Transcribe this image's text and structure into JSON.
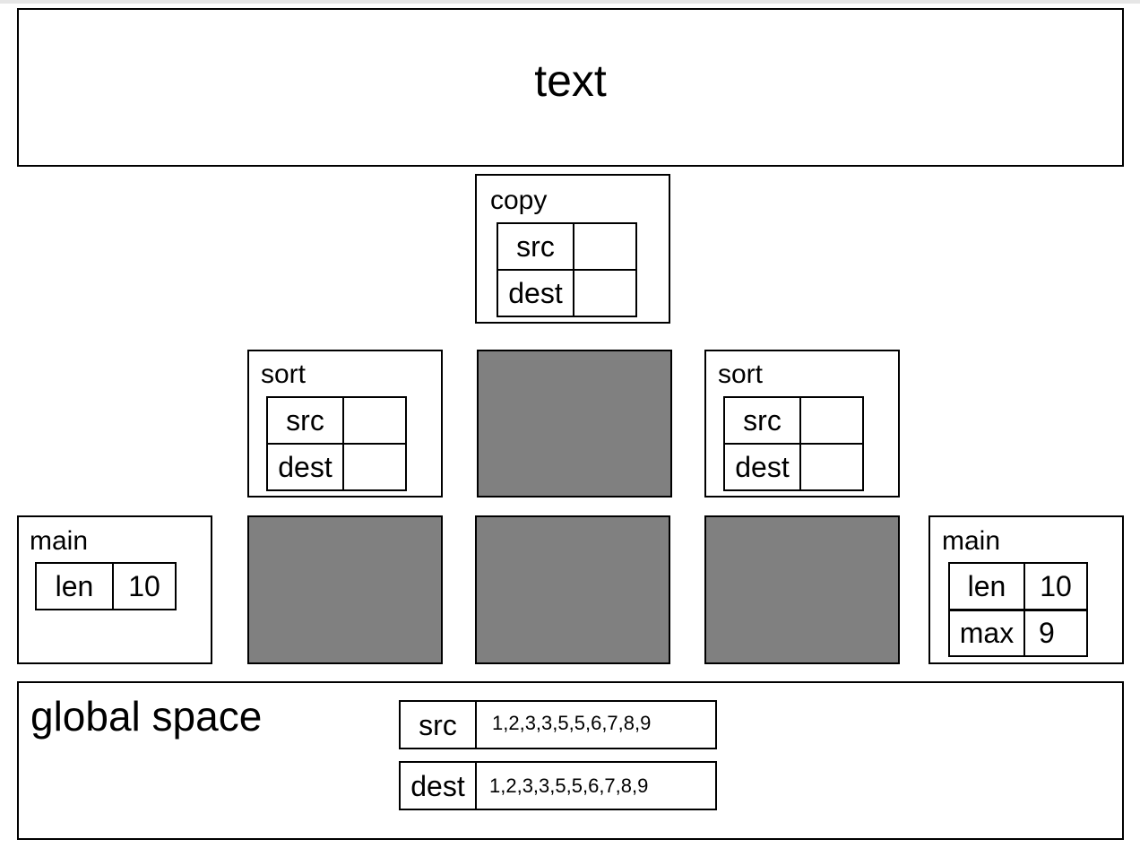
{
  "title": "text",
  "copy_frame": {
    "name": "copy",
    "rows": [
      {
        "var": "src",
        "value": ""
      },
      {
        "var": "dest",
        "value": ""
      }
    ]
  },
  "sort_frame_left": {
    "name": "sort",
    "rows": [
      {
        "var": "src",
        "value": ""
      },
      {
        "var": "dest",
        "value": ""
      }
    ]
  },
  "sort_frame_right": {
    "name": "sort",
    "rows": [
      {
        "var": "src",
        "value": ""
      },
      {
        "var": "dest",
        "value": ""
      }
    ]
  },
  "main_frame_left": {
    "name": "main",
    "rows": [
      {
        "var": "len",
        "value": "10"
      }
    ]
  },
  "main_frame_right": {
    "name": "main",
    "rows": [
      {
        "var": "len",
        "value": "10"
      },
      {
        "var": "max",
        "value": "9"
      }
    ]
  },
  "global": {
    "title": "global space",
    "rows": [
      {
        "var": "src",
        "value": "1,2,3,3,5,5,6,7,8,9"
      },
      {
        "var": "dest",
        "value": "1,2,3,3,5,5,6,7,8,9"
      }
    ]
  },
  "colors": {
    "border": "#000000",
    "filled_block": "#808080",
    "background": "#ffffff"
  }
}
